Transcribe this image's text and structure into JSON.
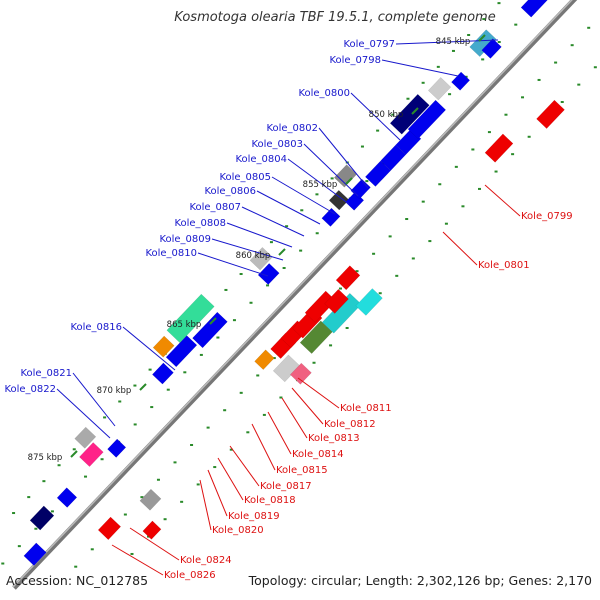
{
  "title": "Kosmotoga olearia TBF 19.5.1, complete genome",
  "accession": "Accession: NC_012785",
  "summary": "Topology: circular; Length: 2,302,126 bp; Genes: 2,170",
  "colors": {
    "forward_label": "#1818cc",
    "reverse_label": "#dd1111",
    "backbone": "#888888",
    "forward_gene": "#0000ee",
    "reverse_gene": "#ee0000"
  },
  "scale_labels": [
    "845 kbp",
    "850 kbp",
    "855 kbp",
    "860 kbp",
    "865 kbp",
    "870 kbp",
    "875 kbp"
  ],
  "forward_labels": [
    "Kole_0797",
    "Kole_0798",
    "Kole_0800",
    "Kole_0802",
    "Kole_0803",
    "Kole_0804",
    "Kole_0805",
    "Kole_0806",
    "Kole_0807",
    "Kole_0808",
    "Kole_0809",
    "Kole_0810",
    "Kole_0816",
    "Kole_0821",
    "Kole_0822"
  ],
  "reverse_labels": [
    "Kole_0799",
    "Kole_0801",
    "Kole_0811",
    "Kole_0812",
    "Kole_0813",
    "Kole_0814",
    "Kole_0815",
    "Kole_0817",
    "Kole_0818",
    "Kole_0819",
    "Kole_0820",
    "Kole_0824",
    "Kole_0826"
  ]
}
